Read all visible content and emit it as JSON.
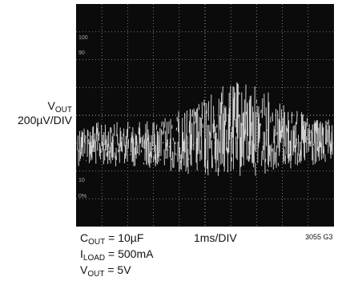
{
  "y_label": {
    "name": {
      "main": "V",
      "sub": "OUT"
    },
    "scale": "200µV/DIV"
  },
  "graticule_marks": [
    "100",
    "90",
    "10",
    "0%"
  ],
  "conditions": [
    {
      "main": "C",
      "sub": "OUT",
      "rest": " = 10µF"
    },
    {
      "main": "I",
      "sub": "LOAD",
      "rest": " = 500mA"
    },
    {
      "main": "V",
      "sub": "OUT",
      "rest": " = 5V"
    }
  ],
  "x_scale": "1ms/DIV",
  "figure_id": "3055 G3"
}
